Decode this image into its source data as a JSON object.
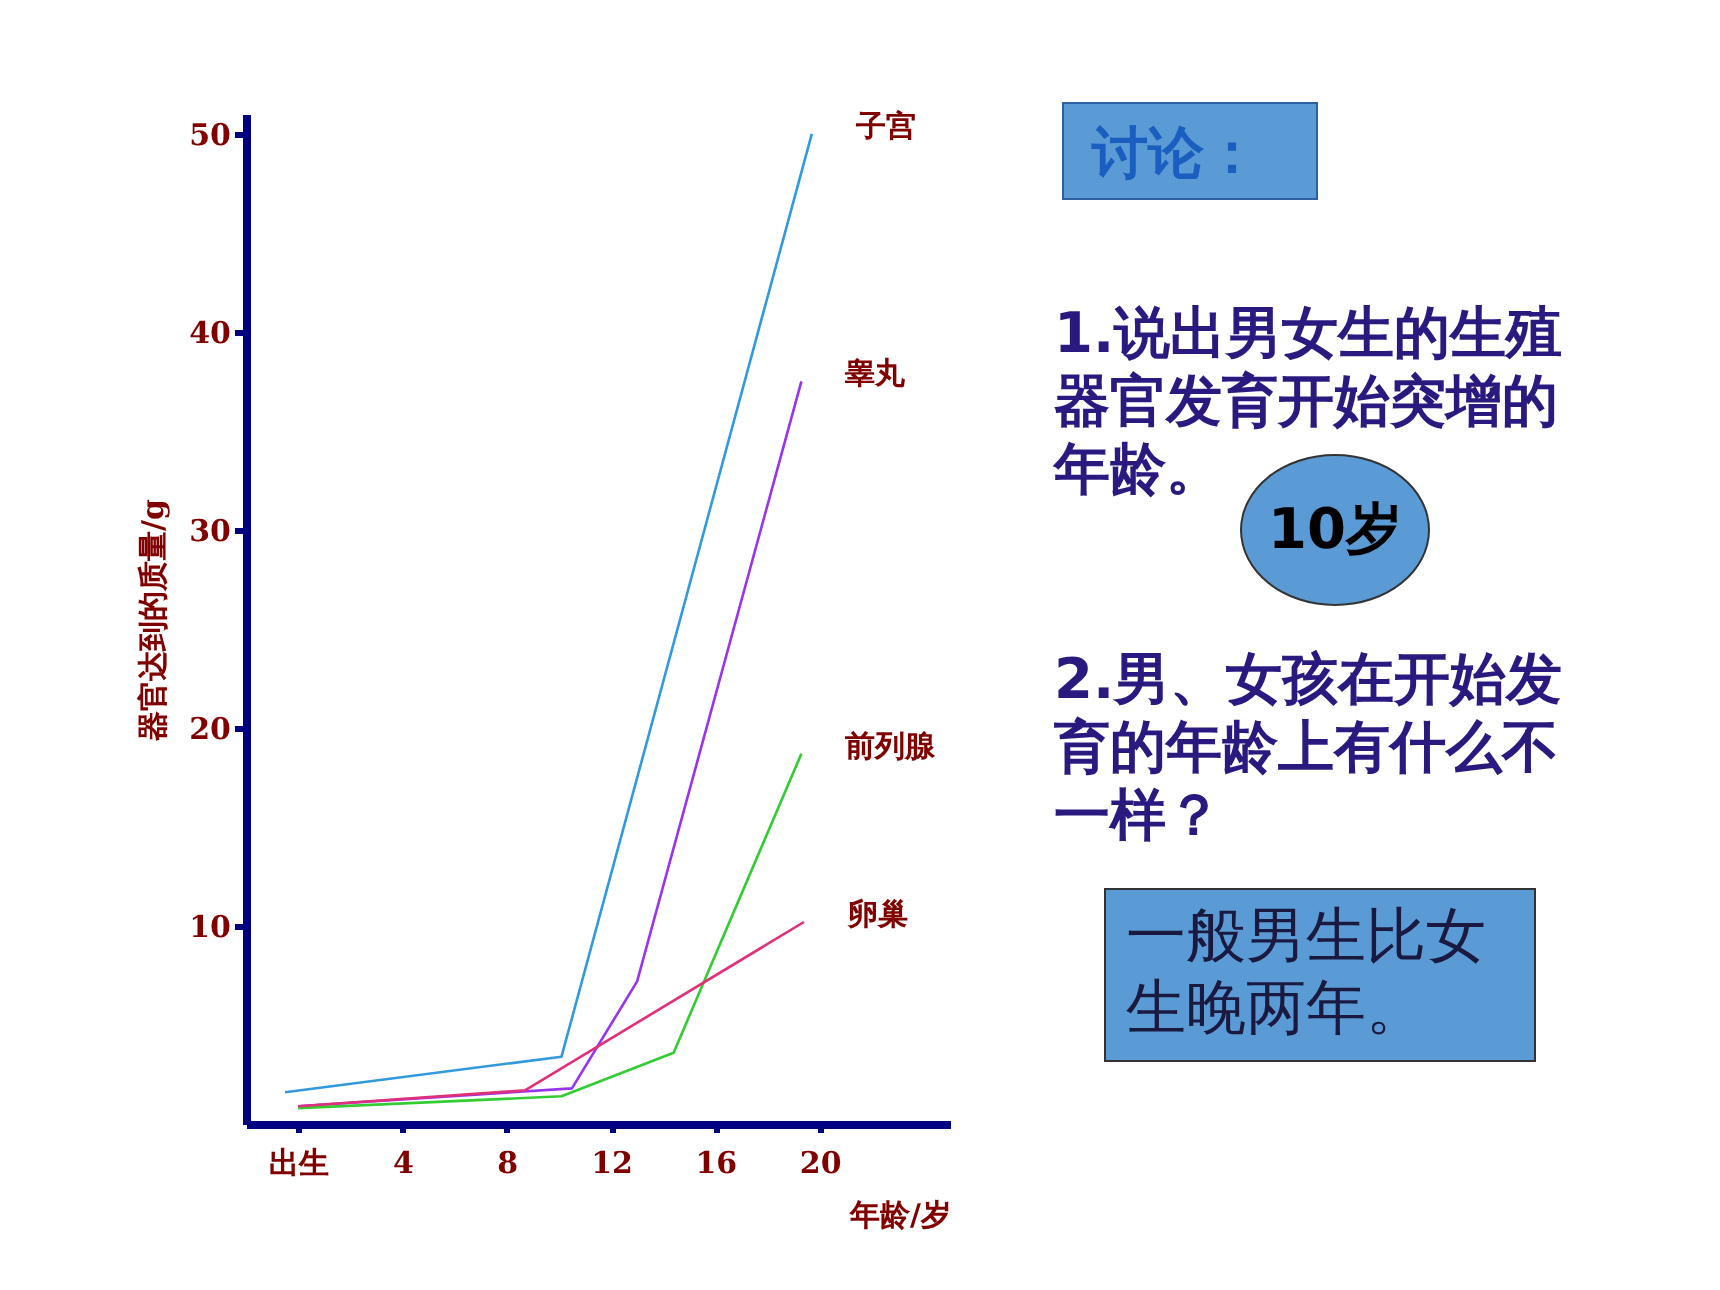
{
  "chart_data": {
    "type": "line",
    "ylabel": "器官达到的质量/g",
    "xlabel": "年龄/岁",
    "xlim": [
      -2,
      25
    ],
    "ylim": [
      0,
      51
    ],
    "xticks": [
      {
        "value": 0,
        "label": "出生"
      },
      4,
      8,
      12,
      16,
      20
    ],
    "yticks": [
      10,
      20,
      30,
      40,
      50
    ],
    "grid": false,
    "legend": false,
    "marker": "none",
    "line_style": "solid",
    "series": [
      {
        "name": "子宫",
        "color": "#3399dd",
        "x": [
          -0.5,
          10.1,
          19.7
        ],
        "values": [
          1.6,
          3.4,
          50
        ]
      },
      {
        "name": "睾丸",
        "color": "#9933ee",
        "x": [
          0,
          10.5,
          13,
          19.3
        ],
        "values": [
          0.9,
          1.8,
          7.2,
          37.5
        ]
      },
      {
        "name": "前列腺",
        "color": "#33cc33",
        "x": [
          0,
          10.1,
          14.4,
          19.3
        ],
        "values": [
          0.8,
          1.4,
          3.6,
          18.7
        ]
      },
      {
        "name": "卵巢",
        "color": "#e0307a",
        "x": [
          0,
          8.7,
          19.4
        ],
        "values": [
          0.9,
          1.7,
          10.2
        ]
      }
    ],
    "annotations": [
      "讨论：",
      "1.说出男女生的生殖器官发育开始突增的年龄。",
      "10岁",
      "2.男、女孩在开始发育的年龄上有什么不一样？",
      "一般男生比女生晚两年。"
    ]
  }
}
